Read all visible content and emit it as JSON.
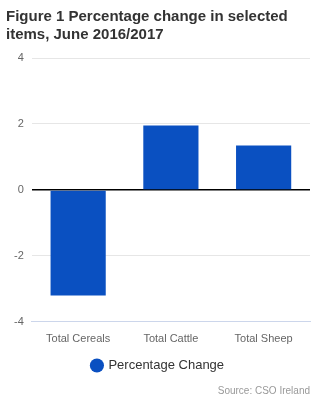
{
  "chart_data": {
    "type": "bar",
    "title": "Figure 1 Percentage change in selected items, June 2016/2017",
    "categories": [
      "Total Cereals",
      "Total Cattle",
      "Total Sheep"
    ],
    "series": [
      {
        "name": "Percentage Change",
        "color": "#0a50c1",
        "values": [
          -3.2,
          1.95,
          1.35
        ]
      }
    ],
    "ylim": [
      -4,
      4
    ],
    "yticks": [
      -4,
      -2,
      0,
      2,
      4
    ],
    "grid": true,
    "legend": "bottom",
    "source": "Source: CSO Ireland"
  }
}
